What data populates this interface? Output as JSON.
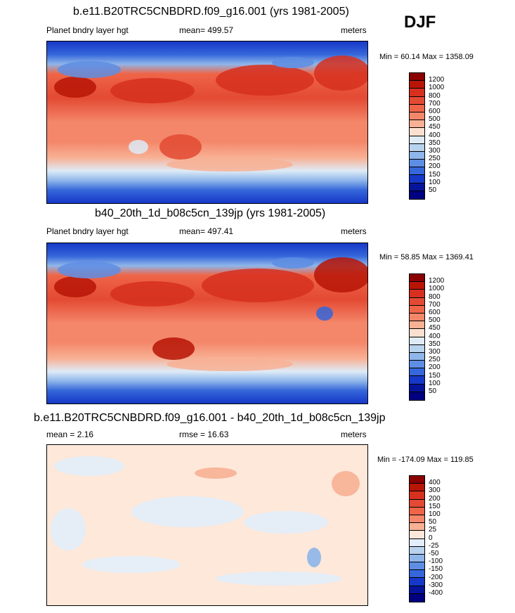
{
  "season": "DJF",
  "panels": [
    {
      "title": "b.e11.B20TRC5CNBDRD.f09_g16.001 (yrs 1981-2005)",
      "left_label": "Planet bndry layer hgt",
      "center_label": "mean= 499.57",
      "units": "meters",
      "minmax": "Min = 60.14 Max = 1358.09",
      "colorbar": {
        "labels": [
          "1200",
          "1000",
          "800",
          "700",
          "600",
          "500",
          "450",
          "400",
          "350",
          "300",
          "250",
          "200",
          "150",
          "100",
          "50"
        ],
        "colors": [
          "#8b0000",
          "#b81506",
          "#d7301f",
          "#e34a33",
          "#ef6548",
          "#f4876a",
          "#f8b195",
          "#fbe0d0",
          "#deebf7",
          "#b9d3ee",
          "#8eb6ea",
          "#5e8ee4",
          "#3566da",
          "#1638c8",
          "#06149a",
          "#000080"
        ]
      }
    },
    {
      "title": "b40_20th_1d_b08c5cn_139jp (yrs 1981-2005)",
      "left_label": "Planet bndry layer hgt",
      "center_label": "mean= 497.41",
      "units": "meters",
      "minmax": "Min =  58.85 Max = 1369.41",
      "colorbar": {
        "labels": [
          "1200",
          "1000",
          "800",
          "700",
          "600",
          "500",
          "450",
          "400",
          "350",
          "300",
          "250",
          "200",
          "150",
          "100",
          "50"
        ],
        "colors": [
          "#8b0000",
          "#b81506",
          "#d7301f",
          "#e34a33",
          "#ef6548",
          "#f4876a",
          "#f8b195",
          "#fbe0d0",
          "#deebf7",
          "#b9d3ee",
          "#8eb6ea",
          "#5e8ee4",
          "#3566da",
          "#1638c8",
          "#06149a",
          "#000080"
        ]
      }
    },
    {
      "title": "b.e11.B20TRC5CNBDRD.f09_g16.001 - b40_20th_1d_b08c5cn_139jp",
      "left_label": "mean =   2.16",
      "center_label": "rmse =  16.63",
      "units": "meters",
      "minmax": "Min = -174.09 Max = 119.85",
      "colorbar": {
        "labels": [
          "400",
          "300",
          "200",
          "150",
          "100",
          "50",
          "25",
          "0",
          "-25",
          "-50",
          "-100",
          "-150",
          "-200",
          "-300",
          "-400"
        ],
        "colors": [
          "#8b0000",
          "#b81506",
          "#d7301f",
          "#e34a33",
          "#ef6548",
          "#f4876a",
          "#f8b195",
          "#fde8da",
          "#e3eefa",
          "#b9d3ee",
          "#8eb6ea",
          "#5e8ee4",
          "#3566da",
          "#1638c8",
          "#06149a",
          "#000080"
        ]
      }
    }
  ]
}
